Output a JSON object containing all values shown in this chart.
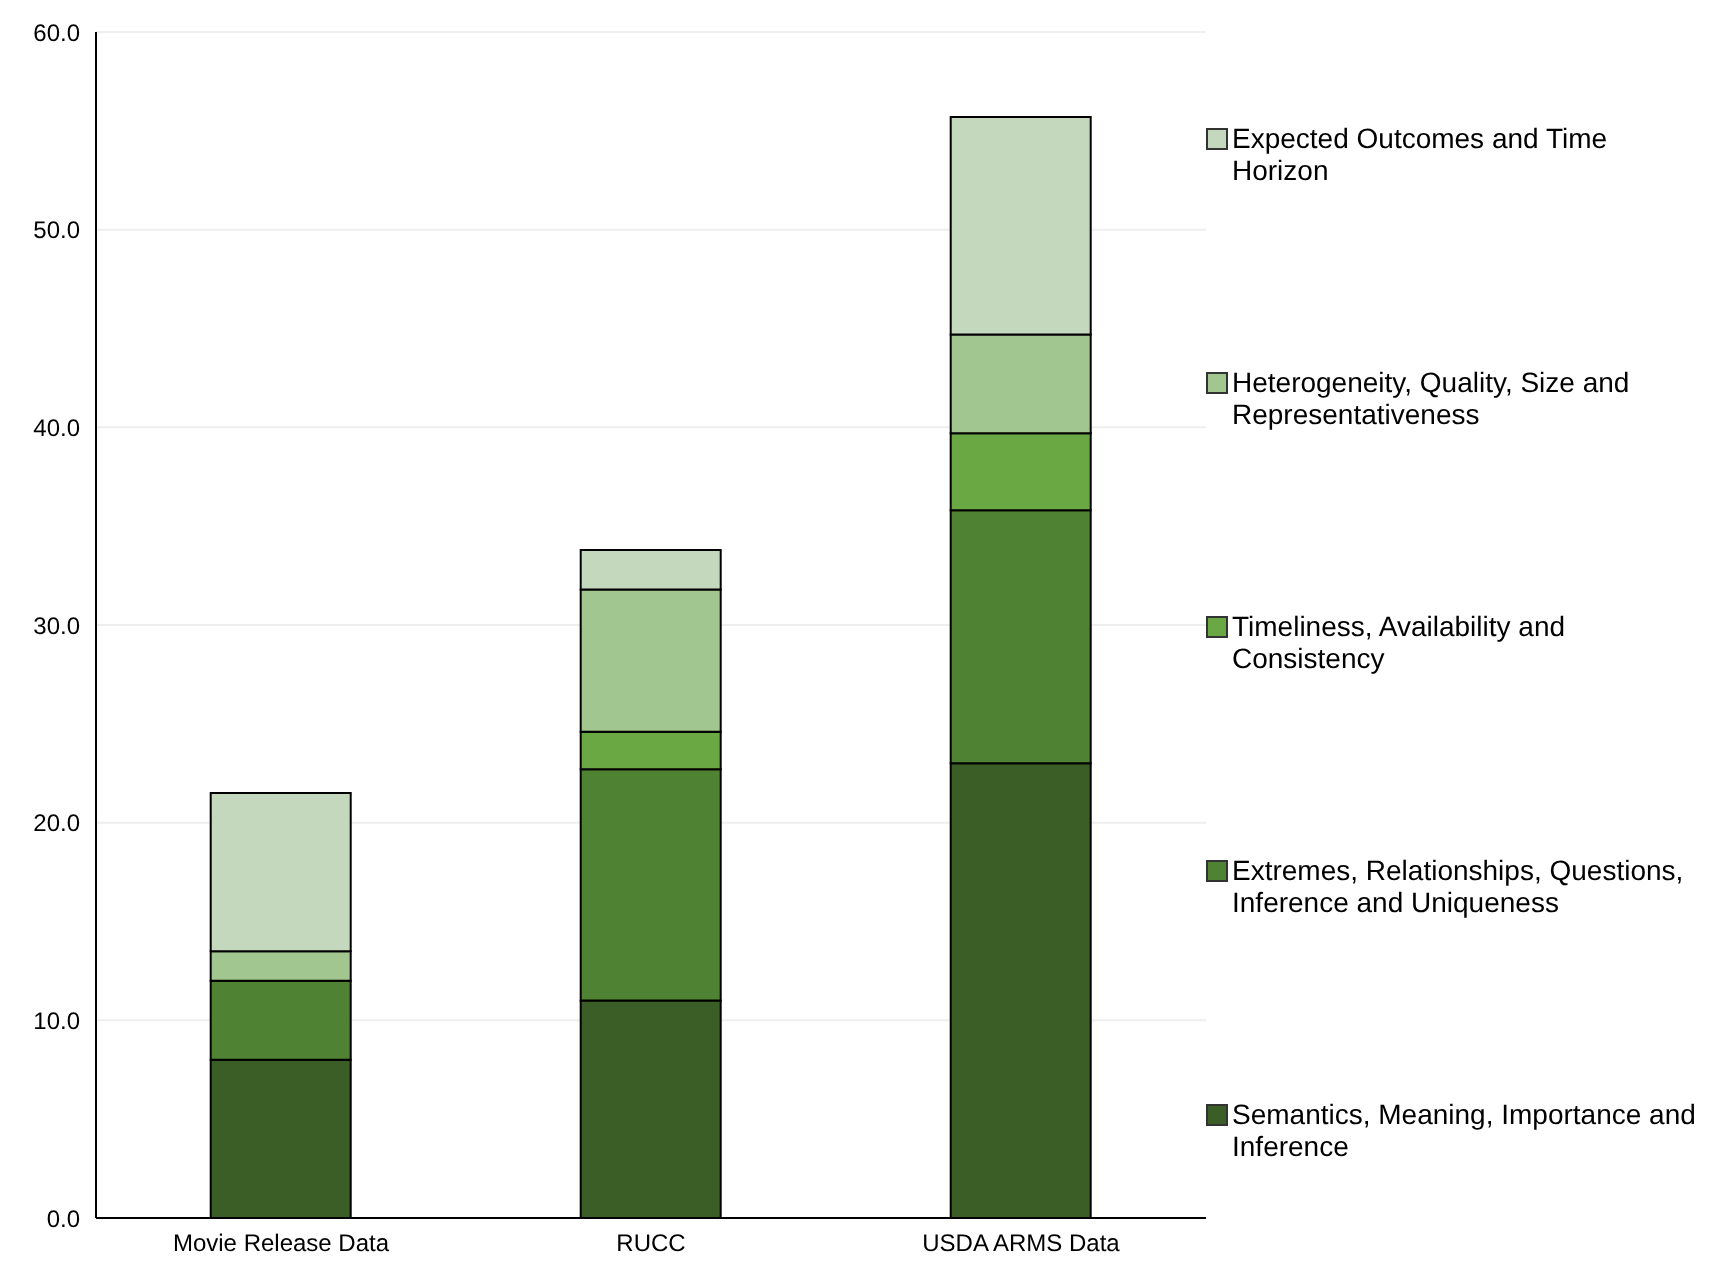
{
  "chart_data": {
    "type": "bar",
    "stacked": true,
    "categories": [
      "Movie Release Data",
      "RUCC",
      "USDA ARMS Data"
    ],
    "series": [
      {
        "name": "Semantics, Meaning, Importance and Inference",
        "color": "#3b5e27",
        "values": [
          8.0,
          11.0,
          23.0
        ]
      },
      {
        "name": "Extremes, Relationships, Questions, Inference and Uniqueness",
        "color": "#4f8232",
        "values": [
          4.0,
          11.7,
          12.8
        ]
      },
      {
        "name": "Timeliness, Availability and Consistency",
        "color": "#6aa843",
        "values": [
          0,
          1.9,
          3.9
        ]
      },
      {
        "name": "Heterogeneity, Quality, Size and Representativeness",
        "color": "#a2c68f",
        "values": [
          1.5,
          7.2,
          5.0
        ]
      },
      {
        "name": "Expected Outcomes and Time Horizon",
        "color": "#c4d8bd",
        "values": [
          8.0,
          2.0,
          11.0
        ]
      }
    ],
    "ylim": [
      0,
      60
    ],
    "yticks": [
      {
        "value": 0,
        "label": "0.0"
      },
      {
        "value": 10,
        "label": "10.0"
      },
      {
        "value": 20,
        "label": "20.0"
      },
      {
        "value": 30,
        "label": "30.0"
      },
      {
        "value": 40,
        "label": "40.0"
      },
      {
        "value": 50,
        "label": "50.0"
      },
      {
        "value": 60,
        "label": "60.0"
      }
    ],
    "grid": "y",
    "legend": "right"
  }
}
